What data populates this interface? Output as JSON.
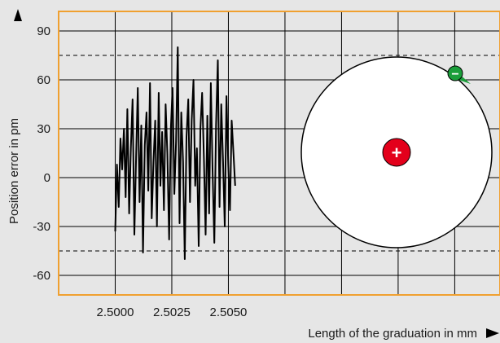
{
  "chart_data": {
    "type": "line",
    "xlabel": "Length of the graduation in mm",
    "ylabel": "Position error in pm",
    "xlim": [
      2.4975,
      2.517
    ],
    "ylim": [
      -72,
      102
    ],
    "x_ticks": [
      {
        "value": 2.5,
        "label": "2.5000"
      },
      {
        "value": 2.5025,
        "label": "2.5025"
      },
      {
        "value": 2.505,
        "label": "2.5050"
      }
    ],
    "x_grid": [
      2.5,
      2.5025,
      2.505,
      2.5075,
      2.51,
      2.5125,
      2.515
    ],
    "y_ticks": [
      {
        "value": 90,
        "label": "90"
      },
      {
        "value": 60,
        "label": "60"
      },
      {
        "value": 30,
        "label": "30"
      },
      {
        "value": 0,
        "label": "0"
      },
      {
        "value": -30,
        "label": "-30"
      },
      {
        "value": -60,
        "label": "-60"
      }
    ],
    "reference_lines": [
      75,
      -45
    ],
    "grid": true,
    "series": [
      {
        "color": "#000000",
        "x_range": [
          2.5,
          2.5053
        ],
        "values": [
          -33,
          8,
          -18,
          24,
          5,
          30,
          -12,
          42,
          -22,
          18,
          48,
          -35,
          12,
          55,
          -15,
          32,
          -46,
          20,
          40,
          -8,
          58,
          -25,
          10,
          35,
          -30,
          52,
          -5,
          28,
          -20,
          45,
          15,
          -38,
          30,
          55,
          -10,
          22,
          80,
          -28,
          40,
          10,
          -50,
          25,
          48,
          -15,
          35,
          60,
          -5,
          18,
          -42,
          30,
          52,
          12,
          -35,
          38,
          -22,
          58,
          5,
          -40,
          32,
          72,
          -18,
          45,
          10,
          -30,
          50,
          8,
          -20,
          35,
          15,
          -5
        ]
      }
    ],
    "inset": {
      "type": "disc-diagram",
      "center_symbol": "+",
      "edge_symbol": "−",
      "center_color": "#e3001b",
      "edge_color": "#1a9e3a",
      "disc_color": "#ffffff"
    },
    "colors": {
      "plot_border": "#f0a030",
      "background": "#e6e6e6",
      "grid": "#000000"
    }
  }
}
